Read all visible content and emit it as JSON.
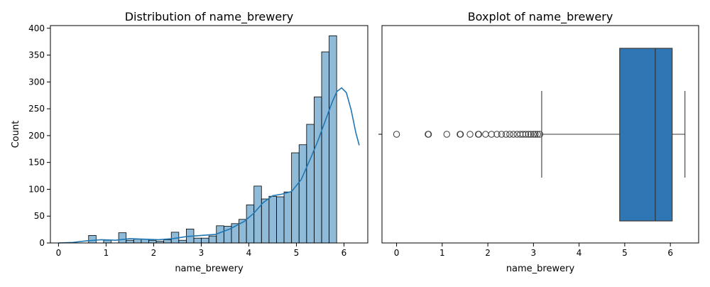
{
  "chart_data": [
    {
      "type": "histogram",
      "title": "Distribution of name_brewery",
      "xlabel": "name_brewery",
      "ylabel": "Count",
      "xlim": [
        -0.17,
        6.5
      ],
      "ylim": [
        0,
        405
      ],
      "xticks": [
        "0",
        "1",
        "2",
        "3",
        "4",
        "5",
        "6"
      ],
      "yticks": [
        "0",
        "50",
        "100",
        "150",
        "200",
        "250",
        "300",
        "350",
        "400"
      ],
      "bin_width": 0.158,
      "bins": [
        {
          "x": 0.0,
          "count": 0
        },
        {
          "x": 0.158,
          "count": 0
        },
        {
          "x": 0.316,
          "count": 0
        },
        {
          "x": 0.474,
          "count": 0
        },
        {
          "x": 0.632,
          "count": 14
        },
        {
          "x": 0.79,
          "count": 0
        },
        {
          "x": 0.948,
          "count": 5
        },
        {
          "x": 1.106,
          "count": 0
        },
        {
          "x": 1.264,
          "count": 19
        },
        {
          "x": 1.422,
          "count": 5
        },
        {
          "x": 1.58,
          "count": 7
        },
        {
          "x": 1.738,
          "count": 7
        },
        {
          "x": 1.896,
          "count": 5
        },
        {
          "x": 2.054,
          "count": 3
        },
        {
          "x": 2.212,
          "count": 6
        },
        {
          "x": 2.37,
          "count": 20
        },
        {
          "x": 2.528,
          "count": 5
        },
        {
          "x": 2.686,
          "count": 26
        },
        {
          "x": 2.844,
          "count": 9
        },
        {
          "x": 3.002,
          "count": 9
        },
        {
          "x": 3.16,
          "count": 13
        },
        {
          "x": 3.318,
          "count": 32
        },
        {
          "x": 3.476,
          "count": 31
        },
        {
          "x": 3.634,
          "count": 36
        },
        {
          "x": 3.792,
          "count": 44
        },
        {
          "x": 3.95,
          "count": 71
        },
        {
          "x": 4.108,
          "count": 106
        },
        {
          "x": 4.266,
          "count": 82
        },
        {
          "x": 4.424,
          "count": 87
        },
        {
          "x": 4.582,
          "count": 86
        },
        {
          "x": 4.74,
          "count": 95
        },
        {
          "x": 4.898,
          "count": 168
        },
        {
          "x": 5.056,
          "count": 183
        },
        {
          "x": 5.214,
          "count": 221
        },
        {
          "x": 5.372,
          "count": 272
        },
        {
          "x": 5.53,
          "count": 356
        },
        {
          "x": 5.688,
          "count": 386
        }
      ],
      "kde": {
        "x": [
          0,
          0.3,
          0.6,
          0.9,
          1.2,
          1.5,
          1.8,
          2.1,
          2.4,
          2.7,
          3.0,
          3.3,
          3.6,
          3.9,
          4.1,
          4.3,
          4.5,
          4.7,
          4.9,
          5.1,
          5.3,
          5.45,
          5.6,
          5.75,
          5.85,
          5.95,
          6.05,
          6.15,
          6.25,
          6.32
        ],
        "y": [
          0,
          1,
          4,
          6,
          5,
          8,
          7,
          6,
          8,
          12,
          14,
          16,
          26,
          40,
          55,
          75,
          88,
          91,
          96,
          118,
          158,
          190,
          226,
          262,
          282,
          289,
          280,
          248,
          205,
          182
        ]
      }
    },
    {
      "type": "boxplot",
      "title": "Boxplot of name_brewery",
      "xlabel": "name_brewery",
      "xlim": [
        -0.32,
        6.62
      ],
      "xticks": [
        "0",
        "1",
        "2",
        "3",
        "4",
        "5",
        "6"
      ],
      "color": "#2f77b4",
      "q1": 4.89,
      "median": 5.67,
      "q3": 6.04,
      "whisker_low": 3.18,
      "whisker_high": 6.32,
      "outliers": [
        0,
        0.69,
        0.7,
        1.1,
        1.39,
        1.4,
        1.61,
        1.79,
        1.8,
        1.95,
        2.08,
        2.2,
        2.3,
        2.4,
        2.48,
        2.56,
        2.64,
        2.71,
        2.77,
        2.83,
        2.89,
        2.94,
        3.0,
        3.04,
        3.09,
        3.14
      ]
    }
  ]
}
